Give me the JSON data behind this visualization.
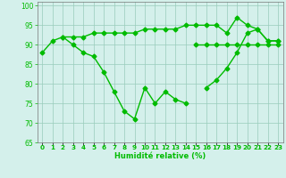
{
  "x": [
    0,
    1,
    2,
    3,
    4,
    5,
    6,
    7,
    8,
    9,
    10,
    11,
    12,
    13,
    14,
    15,
    16,
    17,
    18,
    19,
    20,
    21,
    22,
    23
  ],
  "line1": [
    88,
    91,
    92,
    90,
    88,
    87,
    83,
    78,
    73,
    71,
    79,
    75,
    78,
    76,
    75,
    null,
    79,
    81,
    84,
    88,
    93,
    94,
    91,
    91
  ],
  "line2": [
    null,
    null,
    92,
    92,
    92,
    93,
    93,
    93,
    93,
    93,
    94,
    94,
    94,
    94,
    95,
    95,
    95,
    95,
    93,
    97,
    95,
    94,
    91,
    91
  ],
  "line3": [
    null,
    null,
    null,
    null,
    null,
    null,
    null,
    null,
    null,
    null,
    null,
    null,
    null,
    null,
    null,
    90,
    90,
    90,
    90,
    90,
    90,
    90,
    90,
    90
  ],
  "line_color": "#00bb00",
  "bg_color": "#d4f0eb",
  "grid_color": "#99ccbb",
  "xlabel": "Humidité relative (%)",
  "xlim": [
    -0.5,
    23.5
  ],
  "ylim": [
    65,
    101
  ],
  "yticks": [
    65,
    70,
    75,
    80,
    85,
    90,
    95,
    100
  ],
  "marker": "D",
  "markersize": 2.5,
  "linewidth": 1.0
}
